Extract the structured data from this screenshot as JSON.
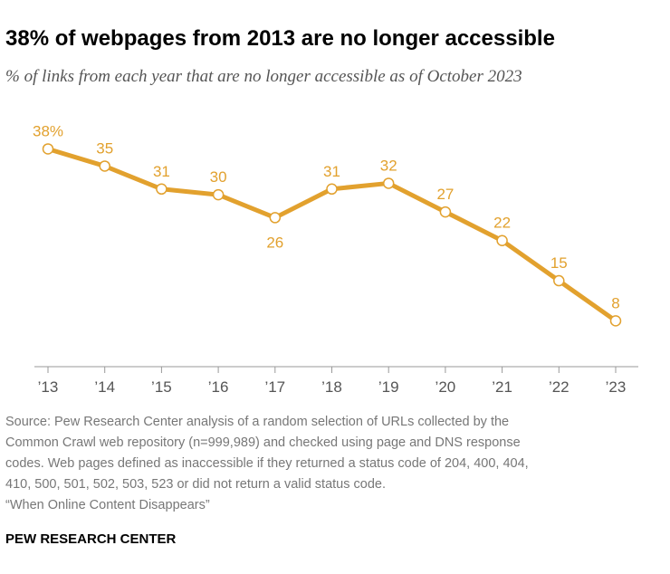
{
  "chart_data": {
    "type": "line",
    "title": "38% of webpages from 2013 are no longer accessible",
    "subtitle": "% of links from each year that are no longer accessible as of October 2023",
    "categories": [
      "’13",
      "’14",
      "’15",
      "’16",
      "’17",
      "’18",
      "’19",
      "’20",
      "’21",
      "’22",
      "’23"
    ],
    "values": [
      38,
      35,
      31,
      30,
      26,
      31,
      32,
      27,
      22,
      15,
      8
    ],
    "value_labels": [
      "38%",
      "35",
      "31",
      "30",
      "26",
      "31",
      "32",
      "27",
      "22",
      "15",
      "8"
    ],
    "color": "#e2a12e",
    "source_lines": [
      "Source: Pew Research Center analysis of a random selection of URLs collected by the",
      "Common Crawl web repository (n=999,989) and checked using page and DNS response",
      "codes. Web pages defined as inaccessible if they returned a status code of 204, 400, 404,",
      "410, 500, 501, 502, 503, 523 or did not return a valid status code.",
      "“When Online Content Disappears”"
    ],
    "footer": "PEW RESEARCH CENTER"
  }
}
